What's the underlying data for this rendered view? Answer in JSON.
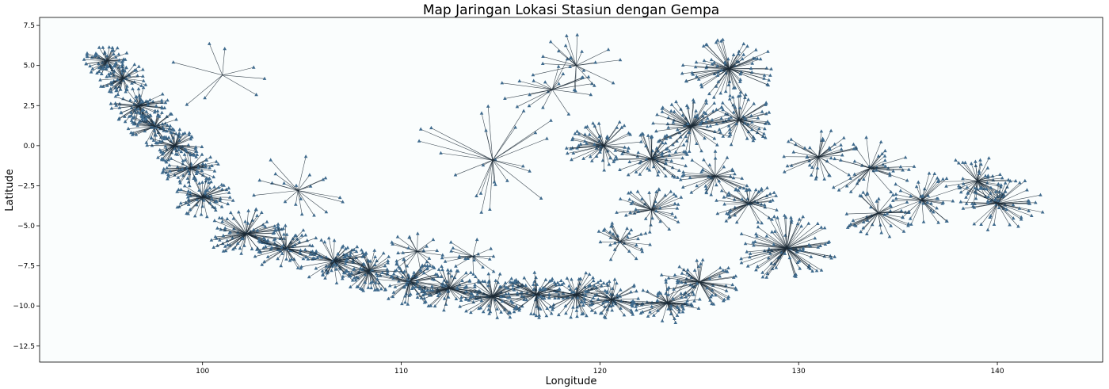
{
  "chart_data": {
    "type": "scatter",
    "title": "Map Jaringan Lokasi Stasiun dengan Gempa",
    "xlabel": "Longitude",
    "ylabel": "Latitude",
    "xlim": [
      91.8,
      145.3
    ],
    "ylim": [
      -13.5,
      8.0
    ],
    "xticks": [
      100,
      110,
      120,
      130,
      140
    ],
    "yticks": [
      -12.5,
      -10.0,
      -7.5,
      -5.0,
      -2.5,
      0.0,
      2.5,
      5.0,
      7.5
    ],
    "xtick_labels": [
      "100",
      "110",
      "120",
      "130",
      "140"
    ],
    "ytick_labels": [
      "−12.5",
      "−10.0",
      "−7.5",
      "−5.0",
      "−2.5",
      "0.0",
      "2.5",
      "5.0",
      "7.5"
    ],
    "grid": false,
    "colors": {
      "line": "#1c2a36",
      "marker": "#3e6a8d",
      "dense": "#0a141c",
      "background": "#fafdfd"
    },
    "stations": [
      {
        "lon": 95.2,
        "lat": 5.3,
        "n": 60,
        "spread": 1.2
      },
      {
        "lon": 96.0,
        "lat": 4.2,
        "n": 60,
        "spread": 1.3
      },
      {
        "lon": 96.8,
        "lat": 2.5,
        "n": 70,
        "spread": 1.5
      },
      {
        "lon": 97.6,
        "lat": 1.2,
        "n": 70,
        "spread": 1.4
      },
      {
        "lon": 98.6,
        "lat": 0.0,
        "n": 70,
        "spread": 1.4
      },
      {
        "lon": 99.4,
        "lat": -1.4,
        "n": 60,
        "spread": 1.5
      },
      {
        "lon": 100.0,
        "lat": -3.2,
        "n": 70,
        "spread": 1.6
      },
      {
        "lon": 102.2,
        "lat": -5.5,
        "n": 80,
        "spread": 2.0
      },
      {
        "lon": 104.2,
        "lat": -6.4,
        "n": 70,
        "spread": 1.8
      },
      {
        "lon": 106.6,
        "lat": -7.2,
        "n": 80,
        "spread": 1.8
      },
      {
        "lon": 108.4,
        "lat": -7.8,
        "n": 70,
        "spread": 1.8
      },
      {
        "lon": 110.4,
        "lat": -8.5,
        "n": 80,
        "spread": 1.8
      },
      {
        "lon": 112.4,
        "lat": -8.9,
        "n": 70,
        "spread": 1.8
      },
      {
        "lon": 114.6,
        "lat": -9.4,
        "n": 80,
        "spread": 1.9
      },
      {
        "lon": 116.8,
        "lat": -9.3,
        "n": 70,
        "spread": 1.8
      },
      {
        "lon": 118.8,
        "lat": -9.3,
        "n": 70,
        "spread": 1.8
      },
      {
        "lon": 120.6,
        "lat": -9.6,
        "n": 60,
        "spread": 1.6
      },
      {
        "lon": 123.4,
        "lat": -9.8,
        "n": 60,
        "spread": 1.8
      },
      {
        "lon": 125.0,
        "lat": -8.5,
        "n": 60,
        "spread": 2.0
      },
      {
        "lon": 129.4,
        "lat": -6.4,
        "n": 90,
        "spread": 2.6
      },
      {
        "lon": 127.5,
        "lat": -3.6,
        "n": 50,
        "spread": 1.8
      },
      {
        "lon": 120.2,
        "lat": 0.0,
        "n": 60,
        "spread": 2.0
      },
      {
        "lon": 122.6,
        "lat": -0.8,
        "n": 60,
        "spread": 2.0
      },
      {
        "lon": 124.6,
        "lat": 1.2,
        "n": 70,
        "spread": 2.2
      },
      {
        "lon": 126.5,
        "lat": 4.8,
        "n": 80,
        "spread": 2.4
      },
      {
        "lon": 127.0,
        "lat": 1.6,
        "n": 60,
        "spread": 2.0
      },
      {
        "lon": 125.8,
        "lat": -1.9,
        "n": 40,
        "spread": 2.0
      },
      {
        "lon": 122.6,
        "lat": -4.0,
        "n": 40,
        "spread": 1.8
      },
      {
        "lon": 121.0,
        "lat": -6.0,
        "n": 30,
        "spread": 1.6
      },
      {
        "lon": 131.0,
        "lat": -0.7,
        "n": 40,
        "spread": 2.2
      },
      {
        "lon": 133.6,
        "lat": -1.4,
        "n": 40,
        "spread": 2.4
      },
      {
        "lon": 134.0,
        "lat": -4.2,
        "n": 40,
        "spread": 2.0
      },
      {
        "lon": 136.2,
        "lat": -3.4,
        "n": 40,
        "spread": 2.2
      },
      {
        "lon": 139.0,
        "lat": -2.2,
        "n": 50,
        "spread": 2.0
      },
      {
        "lon": 140.0,
        "lat": -3.6,
        "n": 60,
        "spread": 2.4
      },
      {
        "lon": 114.6,
        "lat": -0.9,
        "n": 25,
        "spread": 4.5
      },
      {
        "lon": 117.6,
        "lat": 3.5,
        "n": 20,
        "spread": 2.8
      },
      {
        "lon": 118.8,
        "lat": 5.0,
        "n": 20,
        "spread": 2.4
      },
      {
        "lon": 104.8,
        "lat": -2.8,
        "n": 20,
        "spread": 3.0
      },
      {
        "lon": 101.0,
        "lat": 4.4,
        "n": 8,
        "spread": 3.0
      },
      {
        "lon": 110.8,
        "lat": -6.6,
        "n": 20,
        "spread": 1.6
      },
      {
        "lon": 113.6,
        "lat": -6.9,
        "n": 20,
        "spread": 1.6
      }
    ]
  }
}
